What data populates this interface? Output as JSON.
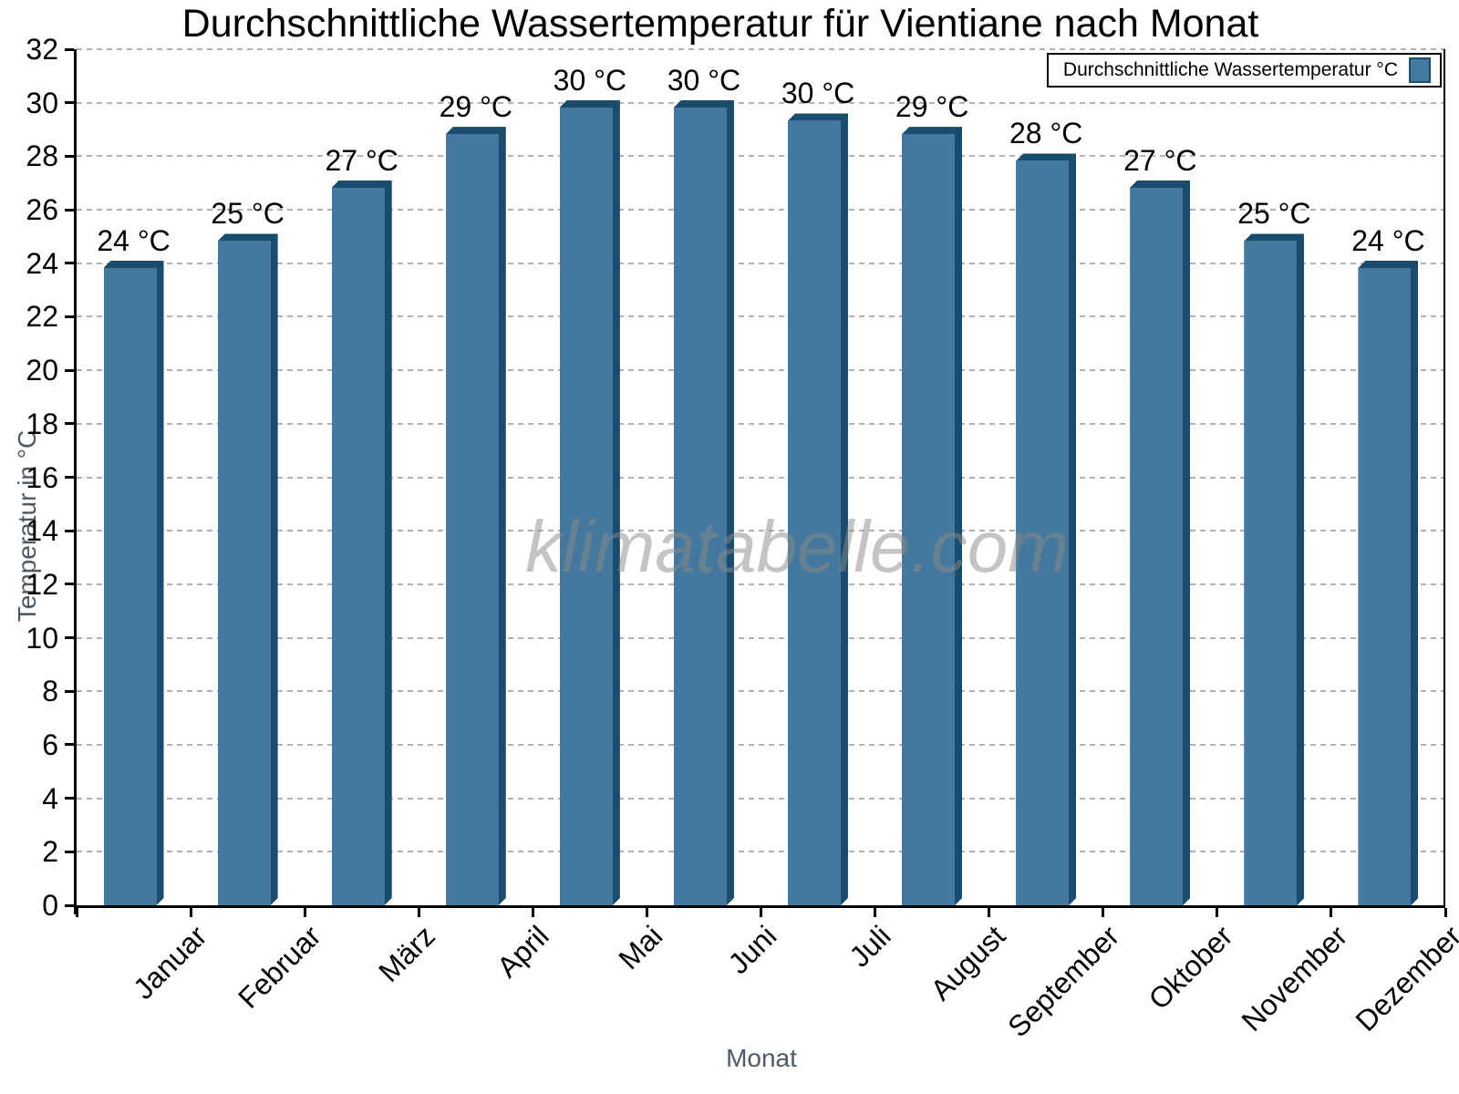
{
  "chart_data": {
    "type": "bar",
    "title": "Durchschnittliche Wassertemperatur für Vientiane nach Monat",
    "xlabel": "Monat",
    "ylabel": "Temperatur in °C",
    "categories": [
      "Januar",
      "Februar",
      "März",
      "April",
      "Mai",
      "Juni",
      "Juli",
      "August",
      "September",
      "Oktober",
      "November",
      "Dezember"
    ],
    "values": [
      24.1,
      25.1,
      27.1,
      29.1,
      30.1,
      30.1,
      29.6,
      29.1,
      28.1,
      27.1,
      25.1,
      24.1
    ],
    "bar_labels": [
      "24 °C",
      "25 °C",
      "27 °C",
      "29 °C",
      "30 °C",
      "30 °C",
      "30 °C",
      "29 °C",
      "28 °C",
      "27 °C",
      "25 °C",
      "24 °C"
    ],
    "ylim": [
      0,
      32
    ],
    "ytick_step": 2,
    "grid": true,
    "legend": {
      "position": "top-right",
      "label": "Durchschnittliche Wassertemperatur °C"
    },
    "watermark": "klimatabelle.com",
    "colors": {
      "bar": "#44789e",
      "bar_edge": "#1a4c6e",
      "grid": "#b2b2b2",
      "axis": "#000000",
      "axis_title": "#4d5a66",
      "watermark": "#8a8a8a"
    }
  }
}
